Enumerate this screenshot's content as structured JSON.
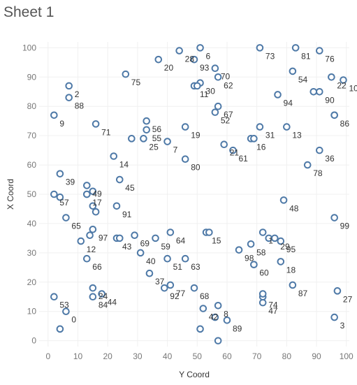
{
  "sheet_title": "Sheet 1",
  "chart_data": {
    "type": "scatter",
    "xlabel": "Y Coord",
    "ylabel": "X Coord",
    "xlim": [
      -3,
      101
    ],
    "ylim": [
      -2,
      102
    ],
    "x_ticks": [
      0,
      10,
      20,
      30,
      40,
      50,
      60,
      70,
      80,
      90,
      100
    ],
    "y_ticks": [
      0,
      10,
      20,
      30,
      40,
      50,
      60,
      70,
      80,
      90,
      100
    ],
    "grid": true,
    "marker_color": "#4e79a7",
    "points": [
      {
        "label": "0",
        "x": 6,
        "y": 10
      },
      {
        "label": "1",
        "x": 72,
        "y": 37
      },
      {
        "label": "2",
        "x": 7,
        "y": 87
      },
      {
        "label": "3",
        "x": 96,
        "y": 8
      },
      {
        "label": "6",
        "x": 51,
        "y": 100
      },
      {
        "label": "7",
        "x": 40,
        "y": 68
      },
      {
        "label": "8",
        "x": 57,
        "y": 12
      },
      {
        "label": "9",
        "x": 2,
        "y": 77
      },
      {
        "label": "10",
        "x": 99,
        "y": 89
      },
      {
        "label": "11",
        "x": 49,
        "y": 87
      },
      {
        "label": "12",
        "x": 11,
        "y": 34
      },
      {
        "label": "13",
        "x": 80,
        "y": 73
      },
      {
        "label": "14",
        "x": 22,
        "y": 63
      },
      {
        "label": "15",
        "x": 53,
        "y": 37
      },
      {
        "label": "16",
        "x": 68,
        "y": 69
      },
      {
        "label": "17",
        "x": 13,
        "y": 50
      },
      {
        "label": "18",
        "x": 78,
        "y": 27
      },
      {
        "label": "19",
        "x": 46,
        "y": 73
      },
      {
        "label": "20",
        "x": 37,
        "y": 96
      },
      {
        "label": "21",
        "x": 59,
        "y": 67
      },
      {
        "label": "22",
        "x": 95,
        "y": 90
      },
      {
        "label": "24",
        "x": 15,
        "y": 18
      },
      {
        "label": "25",
        "x": 32,
        "y": 69
      },
      {
        "label": "27",
        "x": 97,
        "y": 17
      },
      {
        "label": "28",
        "x": 44,
        "y": 99
      },
      {
        "label": "29",
        "x": 76,
        "y": 35
      },
      {
        "label": "30",
        "x": 51,
        "y": 88
      },
      {
        "label": "31",
        "x": 71,
        "y": 73
      },
      {
        "label": "36",
        "x": 91,
        "y": 65
      },
      {
        "label": "37",
        "x": 34,
        "y": 23
      },
      {
        "label": "39",
        "x": 4,
        "y": 57
      },
      {
        "label": "40",
        "x": 31,
        "y": 30
      },
      {
        "label": "42",
        "x": 52,
        "y": 11
      },
      {
        "label": "43",
        "x": 23,
        "y": 35
      },
      {
        "label": "44",
        "x": 18,
        "y": 16
      },
      {
        "label": "45",
        "x": 24,
        "y": 55
      },
      {
        "label": "47",
        "x": 72,
        "y": 13
      },
      {
        "label": "48",
        "x": 79,
        "y": 48
      },
      {
        "label": "49",
        "x": 13,
        "y": 53
      },
      {
        "label": "51",
        "x": 40,
        "y": 28
      },
      {
        "label": "52",
        "x": 56,
        "y": 78
      },
      {
        "label": "53",
        "x": 2,
        "y": 15
      },
      {
        "label": "54",
        "x": 82,
        "y": 92
      },
      {
        "label": "55",
        "x": 33,
        "y": 72
      },
      {
        "label": "56",
        "x": 33,
        "y": 75
      },
      {
        "label": "57",
        "x": 2,
        "y": 50
      },
      {
        "label": "58",
        "x": 68,
        "y": 33
      },
      {
        "label": "59",
        "x": 36,
        "y": 35
      },
      {
        "label": "60",
        "x": 69,
        "y": 26
      },
      {
        "label": "61",
        "x": 62,
        "y": 65
      },
      {
        "label": "62",
        "x": 57,
        "y": 90
      },
      {
        "label": "63",
        "x": 46,
        "y": 28
      },
      {
        "label": "64",
        "x": 41,
        "y": 37
      },
      {
        "label": "65",
        "x": 6,
        "y": 42
      },
      {
        "label": "66",
        "x": 13,
        "y": 28
      },
      {
        "label": "67",
        "x": 57,
        "y": 80
      },
      {
        "label": "68",
        "x": 49,
        "y": 18
      },
      {
        "label": "69",
        "x": 29,
        "y": 36
      },
      {
        "label": "70",
        "x": 56,
        "y": 93
      },
      {
        "label": "71",
        "x": 16,
        "y": 74
      },
      {
        "label": "73",
        "x": 71,
        "y": 100
      },
      {
        "label": "74",
        "x": 72,
        "y": 15
      },
      {
        "label": "75",
        "x": 26,
        "y": 91
      },
      {
        "label": "76",
        "x": 91,
        "y": 99
      },
      {
        "label": "77",
        "x": 41,
        "y": 19
      },
      {
        "label": "78",
        "x": 87,
        "y": 60
      },
      {
        "label": "80",
        "x": 46,
        "y": 62
      },
      {
        "label": "81",
        "x": 83,
        "y": 100
      },
      {
        "label": "84",
        "x": 15,
        "y": 15
      },
      {
        "label": "86",
        "x": 96,
        "y": 77
      },
      {
        "label": "87",
        "x": 82,
        "y": 19
      },
      {
        "label": "88",
        "x": 7,
        "y": 83
      },
      {
        "label": "89",
        "x": 60,
        "y": 7
      },
      {
        "label": "90",
        "x": 91,
        "y": 85
      },
      {
        "label": "91",
        "x": 23,
        "y": 46
      },
      {
        "label": "92",
        "x": 39,
        "y": 18
      },
      {
        "label": "93",
        "x": 49,
        "y": 96
      },
      {
        "label": "94",
        "x": 77,
        "y": 84
      },
      {
        "label": "95",
        "x": 78,
        "y": 34
      },
      {
        "label": "97",
        "x": 15,
        "y": 38
      },
      {
        "label": "98",
        "x": 64,
        "y": 31
      },
      {
        "label": "99",
        "x": 96,
        "y": 42
      },
      {
        "label": "",
        "x": 4,
        "y": 4
      },
      {
        "label": "",
        "x": 4,
        "y": 49
      },
      {
        "label": "",
        "x": 14,
        "y": 36
      },
      {
        "label": "",
        "x": 15,
        "y": 46
      },
      {
        "label": "",
        "x": 15,
        "y": 51
      },
      {
        "label": "",
        "x": 16,
        "y": 44
      },
      {
        "label": "",
        "x": 13,
        "y": 50
      },
      {
        "label": "",
        "x": 24,
        "y": 35
      },
      {
        "label": "",
        "x": 28,
        "y": 69
      },
      {
        "label": "",
        "x": 50,
        "y": 87
      },
      {
        "label": "",
        "x": 54,
        "y": 37
      },
      {
        "label": "",
        "x": 51,
        "y": 4
      },
      {
        "label": "",
        "x": 57,
        "y": 0
      },
      {
        "label": "",
        "x": 56,
        "y": 8
      },
      {
        "label": "",
        "x": 69,
        "y": 26
      },
      {
        "label": "",
        "x": 69,
        "y": 69
      },
      {
        "label": "",
        "x": 72,
        "y": 16
      },
      {
        "label": "",
        "x": 74,
        "y": 35
      },
      {
        "label": "",
        "x": 89,
        "y": 85
      },
      {
        "label": "",
        "x": 96,
        "y": 77
      }
    ]
  }
}
